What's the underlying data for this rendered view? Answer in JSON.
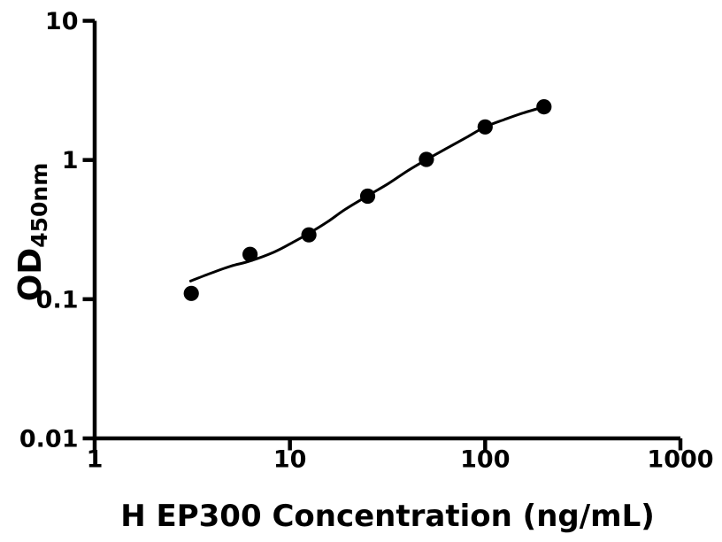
{
  "figure": {
    "background_color": "#ffffff",
    "ink_color": "#000000"
  },
  "chart_data": {
    "type": "scatter",
    "title": "",
    "grid": false,
    "legend": null,
    "x_axis": {
      "title": "H EP300 Concentration (ng/mL)",
      "scale": "log10",
      "range": [
        1,
        1000
      ],
      "tick_values": [
        1,
        10,
        100,
        1000
      ],
      "tick_labels": [
        "1",
        "10",
        "100",
        "1000"
      ]
    },
    "y_axis": {
      "title_main": "OD",
      "title_sub": "450nm",
      "scale": "log10",
      "range": [
        0.01,
        10
      ],
      "tick_values": [
        0.01,
        0.1,
        1,
        10
      ],
      "tick_labels": [
        "0.01",
        "0.1",
        "1",
        "10"
      ]
    },
    "series": [
      {
        "name": "standard-points",
        "marker": "filled-circle",
        "marker_radius_px": 8.6,
        "color": "#000000",
        "x": [
          3.125,
          6.25,
          12.5,
          25,
          50,
          100,
          200
        ],
        "y": [
          0.11,
          0.21,
          0.29,
          0.55,
          1.01,
          1.73,
          2.41
        ]
      }
    ],
    "fit_curve": {
      "name": "4pl-fit-line",
      "color": "#000000",
      "stroke_width_px": 3,
      "x": [
        3.1,
        4.0,
        5.0,
        6.25,
        8.3,
        10.3,
        12.5,
        15.6,
        19.2,
        25,
        32,
        40,
        50,
        64,
        80,
        100,
        125,
        154,
        200
      ],
      "y": [
        0.135,
        0.155,
        0.173,
        0.188,
        0.218,
        0.255,
        0.297,
        0.36,
        0.442,
        0.553,
        0.678,
        0.835,
        1.005,
        1.22,
        1.45,
        1.73,
        1.95,
        2.16,
        2.41
      ]
    }
  }
}
